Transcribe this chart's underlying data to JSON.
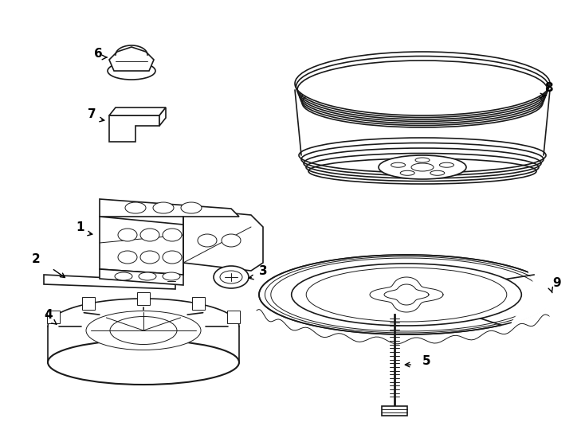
{
  "bg_color": "#ffffff",
  "line_color": "#1a1a1a",
  "figure_width": 7.34,
  "figure_height": 5.4,
  "dpi": 100
}
